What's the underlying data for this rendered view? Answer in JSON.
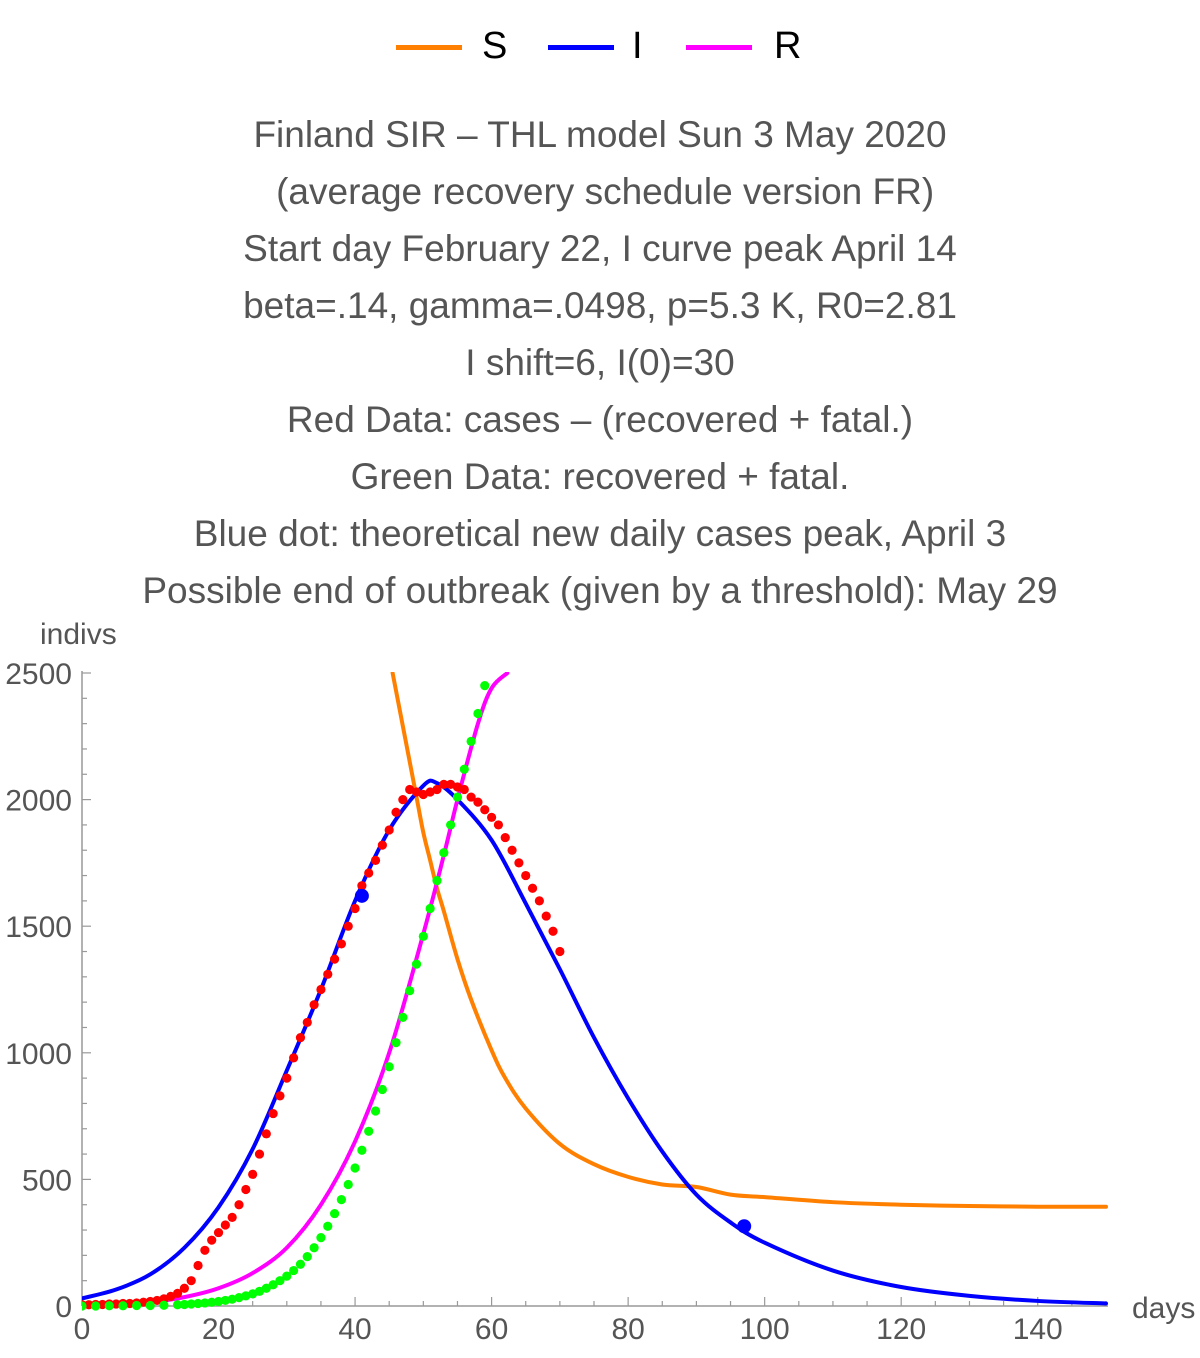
{
  "chart_data": {
    "type": "line",
    "title_lines": [
      "Finland SIR – THL model Sun 3 May 2020",
      " (average recovery schedule version FR)",
      "Start day February 22, I curve peak April 14",
      "beta=.14, gamma=.0498, p=5.3 K, R0=2.81",
      "I shift=6, I(0)=30",
      "Red Data: cases – (recovered + fatal.)",
      "Green Data: recovered + fatal.",
      "Blue dot: theoretical new daily cases peak, April 3",
      "Possible end of outbreak (given by a threshold): May 29"
    ],
    "xlabel": "days",
    "ylabel": "indivs",
    "xlim": [
      0,
      150
    ],
    "ylim": [
      0,
      2500
    ],
    "x_ticks": [
      0,
      20,
      40,
      60,
      80,
      100,
      120,
      140
    ],
    "y_ticks": [
      0,
      500,
      1000,
      1500,
      2000,
      2500
    ],
    "legend_position": "top",
    "series": [
      {
        "name": "S",
        "color": "#ff8000",
        "x": [
          45.5,
          47,
          49,
          50,
          51,
          52,
          53,
          55,
          57,
          60,
          62,
          65,
          70,
          75,
          80,
          85,
          90,
          95,
          100,
          110,
          120,
          130,
          140,
          150
        ],
        "y": [
          2500,
          2290,
          2010,
          1870,
          1760,
          1650,
          1560,
          1370,
          1210,
          1010,
          900,
          780,
          640,
          560,
          510,
          480,
          470,
          440,
          430,
          410,
          400,
          395,
          392,
          392
        ]
      },
      {
        "name": "I",
        "color": "#0000ff",
        "x": [
          0,
          5,
          10,
          15,
          20,
          25,
          30,
          35,
          40,
          45,
          50,
          52,
          55,
          60,
          65,
          70,
          75,
          80,
          85,
          90,
          95,
          100,
          110,
          120,
          130,
          140,
          150
        ],
        "y": [
          30,
          65,
          125,
          230,
          390,
          620,
          930,
          1250,
          1600,
          1880,
          2055,
          2065,
          2000,
          1840,
          1590,
          1330,
          1060,
          820,
          610,
          440,
          330,
          250,
          140,
          75,
          40,
          20,
          10
        ]
      },
      {
        "name": "R",
        "color": "#ff00ff",
        "x": [
          0,
          5,
          10,
          15,
          20,
          25,
          30,
          35,
          40,
          45,
          50,
          53,
          55,
          58,
          60,
          62.3
        ],
        "y": [
          0,
          5,
          15,
          35,
          70,
          130,
          230,
          400,
          650,
          1000,
          1470,
          1780,
          2000,
          2300,
          2440,
          2500
        ]
      }
    ],
    "data_points": [
      {
        "name": "Red Data",
        "color": "#ff0000",
        "x": [
          0,
          1,
          2,
          3,
          4,
          5,
          6,
          7,
          8,
          9,
          10,
          11,
          12,
          13,
          14,
          15,
          16,
          17,
          18,
          19,
          20,
          21,
          22,
          23,
          24,
          25,
          26,
          27,
          28,
          29,
          30,
          31,
          32,
          33,
          34,
          35,
          36,
          37,
          38,
          39,
          40,
          41,
          42,
          43,
          44,
          45,
          46,
          47,
          48,
          49,
          50,
          51,
          52,
          53,
          54,
          55,
          56,
          57,
          58,
          59,
          60,
          61,
          62,
          63,
          64,
          65,
          66,
          67,
          68,
          69,
          70
        ],
        "y": [
          5,
          5,
          6,
          6,
          8,
          8,
          10,
          10,
          12,
          15,
          18,
          22,
          28,
          38,
          50,
          70,
          100,
          160,
          220,
          260,
          290,
          320,
          350,
          400,
          460,
          520,
          600,
          680,
          760,
          830,
          900,
          980,
          1060,
          1120,
          1190,
          1250,
          1310,
          1370,
          1430,
          1500,
          1570,
          1660,
          1710,
          1760,
          1820,
          1880,
          1950,
          2000,
          2040,
          2030,
          2020,
          2030,
          2040,
          2060,
          2060,
          2050,
          2040,
          2010,
          1990,
          1960,
          1930,
          1900,
          1850,
          1800,
          1750,
          1700,
          1650,
          1600,
          1540,
          1480,
          1400
        ]
      },
      {
        "name": "Green Data",
        "color": "#00ff00",
        "x": [
          0,
          2,
          4,
          6,
          8,
          10,
          12,
          14,
          15,
          16,
          17,
          18,
          19,
          20,
          21,
          22,
          23,
          24,
          25,
          26,
          27,
          28,
          29,
          30,
          31,
          32,
          33,
          34,
          35,
          36,
          37,
          38,
          39,
          40,
          41,
          42,
          43,
          44,
          45,
          46,
          47,
          48,
          49,
          50,
          51,
          52,
          53,
          54,
          55,
          56,
          57,
          58,
          59
        ],
        "y": [
          0,
          0,
          1,
          1,
          2,
          2,
          3,
          5,
          6,
          8,
          10,
          12,
          15,
          18,
          22,
          27,
          33,
          40,
          48,
          58,
          70,
          84,
          100,
          118,
          140,
          165,
          195,
          230,
          270,
          315,
          365,
          420,
          480,
          545,
          615,
          690,
          770,
          855,
          945,
          1040,
          1140,
          1245,
          1350,
          1460,
          1570,
          1680,
          1790,
          1900,
          2010,
          2120,
          2230,
          2340,
          2450
        ]
      }
    ],
    "markers": [
      {
        "name": "theoretical new daily cases peak",
        "color": "#0000ff",
        "x": 41,
        "y": 1620
      },
      {
        "name": "possible end of outbreak",
        "color": "#0000ff",
        "x": 97,
        "y": 315
      }
    ]
  }
}
